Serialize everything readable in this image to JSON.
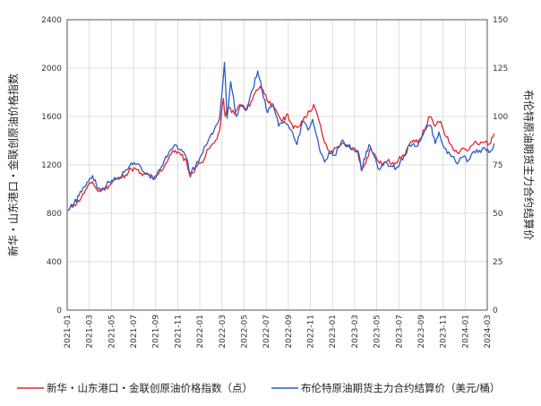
{
  "chart_data": {
    "type": "line",
    "x_labels": [
      "2021-01",
      "2021-03",
      "2021-05",
      "2021-07",
      "2021-09",
      "2021-11",
      "2022-01",
      "2022-03",
      "2022-05",
      "2022-07",
      "2022-09",
      "2022-11",
      "2023-01",
      "2023-03",
      "2023-05",
      "2023-07",
      "2023-09",
      "2023-11",
      "2024-01",
      "2024-03"
    ],
    "x_range": [
      "2021-01",
      "2024-03"
    ],
    "ylabel_left": "新华・山东港口・金联创原油价格指数",
    "ylabel_right": "布伦特原油期货主力合约结算价",
    "ylim_left": [
      0,
      2400
    ],
    "ylim_right": [
      0,
      150
    ],
    "yticks_left": [
      0,
      400,
      800,
      1200,
      1600,
      2000,
      2400
    ],
    "yticks_right": [
      0,
      25,
      50,
      75,
      100,
      125,
      150
    ],
    "grid": true,
    "legend_position": "bottom",
    "series": [
      {
        "name": "新华・山东港口・金联创原油价格指数（点）",
        "axis": "left",
        "color": "#e8262b",
        "points": [
          [
            "2021-01-04",
            820
          ],
          [
            "2021-01-20",
            870
          ],
          [
            "2021-02-10",
            930
          ],
          [
            "2021-02-25",
            1010
          ],
          [
            "2021-03-10",
            1060
          ],
          [
            "2021-03-25",
            980
          ],
          [
            "2021-04-10",
            1000
          ],
          [
            "2021-04-25",
            1030
          ],
          [
            "2021-05-10",
            1080
          ],
          [
            "2021-05-25",
            1090
          ],
          [
            "2021-06-10",
            1120
          ],
          [
            "2021-06-25",
            1170
          ],
          [
            "2021-07-10",
            1160
          ],
          [
            "2021-07-25",
            1110
          ],
          [
            "2021-08-10",
            1130
          ],
          [
            "2021-08-25",
            1080
          ],
          [
            "2021-09-10",
            1130
          ],
          [
            "2021-09-25",
            1190
          ],
          [
            "2021-10-10",
            1280
          ],
          [
            "2021-10-25",
            1320
          ],
          [
            "2021-11-10",
            1280
          ],
          [
            "2021-11-25",
            1230
          ],
          [
            "2021-12-05",
            1100
          ],
          [
            "2021-12-20",
            1180
          ],
          [
            "2022-01-05",
            1220
          ],
          [
            "2022-01-25",
            1330
          ],
          [
            "2022-02-10",
            1380
          ],
          [
            "2022-02-25",
            1480
          ],
          [
            "2022-03-05",
            1750
          ],
          [
            "2022-03-10",
            1600
          ],
          [
            "2022-03-20",
            1680
          ],
          [
            "2022-04-05",
            1620
          ],
          [
            "2022-04-20",
            1700
          ],
          [
            "2022-05-05",
            1650
          ],
          [
            "2022-05-20",
            1720
          ],
          [
            "2022-06-05",
            1820
          ],
          [
            "2022-06-15",
            1850
          ],
          [
            "2022-06-30",
            1780
          ],
          [
            "2022-07-15",
            1680
          ],
          [
            "2022-07-30",
            1640
          ],
          [
            "2022-08-15",
            1560
          ],
          [
            "2022-08-30",
            1620
          ],
          [
            "2022-09-15",
            1500
          ],
          [
            "2022-09-30",
            1520
          ],
          [
            "2022-10-15",
            1600
          ],
          [
            "2022-10-30",
            1640
          ],
          [
            "2022-11-10",
            1700
          ],
          [
            "2022-11-25",
            1560
          ],
          [
            "2022-12-10",
            1380
          ],
          [
            "2022-12-25",
            1290
          ],
          [
            "2023-01-10",
            1340
          ],
          [
            "2023-01-25",
            1370
          ],
          [
            "2023-02-10",
            1350
          ],
          [
            "2023-02-25",
            1340
          ],
          [
            "2023-03-10",
            1310
          ],
          [
            "2023-03-20",
            1150
          ],
          [
            "2023-04-05",
            1260
          ],
          [
            "2023-04-15",
            1340
          ],
          [
            "2023-05-01",
            1250
          ],
          [
            "2023-05-15",
            1200
          ],
          [
            "2023-05-30",
            1230
          ],
          [
            "2023-06-15",
            1220
          ],
          [
            "2023-06-30",
            1240
          ],
          [
            "2023-07-15",
            1280
          ],
          [
            "2023-07-30",
            1370
          ],
          [
            "2023-08-15",
            1390
          ],
          [
            "2023-08-30",
            1420
          ],
          [
            "2023-09-15",
            1520
          ],
          [
            "2023-09-25",
            1600
          ],
          [
            "2023-10-10",
            1520
          ],
          [
            "2023-10-25",
            1560
          ],
          [
            "2023-11-10",
            1430
          ],
          [
            "2023-11-25",
            1360
          ],
          [
            "2023-12-10",
            1300
          ],
          [
            "2023-12-25",
            1340
          ],
          [
            "2024-01-10",
            1320
          ],
          [
            "2024-01-25",
            1380
          ],
          [
            "2024-02-10",
            1370
          ],
          [
            "2024-02-25",
            1390
          ],
          [
            "2024-03-10",
            1380
          ],
          [
            "2024-03-20",
            1460
          ]
        ]
      },
      {
        "name": "布伦特原油期货主力合约结算价（美元/桶）",
        "axis": "right",
        "color": "#2a5dc2",
        "points": [
          [
            "2021-01-04",
            51.5
          ],
          [
            "2021-01-20",
            55.0
          ],
          [
            "2021-02-10",
            61.0
          ],
          [
            "2021-02-25",
            66.0
          ],
          [
            "2021-03-10",
            69.5
          ],
          [
            "2021-03-25",
            62.5
          ],
          [
            "2021-04-10",
            63.0
          ],
          [
            "2021-04-25",
            66.0
          ],
          [
            "2021-05-10",
            68.5
          ],
          [
            "2021-05-25",
            68.5
          ],
          [
            "2021-06-10",
            72.5
          ],
          [
            "2021-06-25",
            76.0
          ],
          [
            "2021-07-10",
            75.5
          ],
          [
            "2021-07-25",
            72.0
          ],
          [
            "2021-08-10",
            70.5
          ],
          [
            "2021-08-25",
            67.5
          ],
          [
            "2021-09-10",
            72.5
          ],
          [
            "2021-09-25",
            77.5
          ],
          [
            "2021-10-10",
            82.5
          ],
          [
            "2021-10-25",
            85.5
          ],
          [
            "2021-11-10",
            83.0
          ],
          [
            "2021-11-25",
            78.5
          ],
          [
            "2021-12-05",
            70.5
          ],
          [
            "2021-12-20",
            74.5
          ],
          [
            "2022-01-05",
            80.0
          ],
          [
            "2022-01-25",
            88.0
          ],
          [
            "2022-02-10",
            93.0
          ],
          [
            "2022-02-25",
            99.0
          ],
          [
            "2022-03-08",
            128.0
          ],
          [
            "2022-03-15",
            99.0
          ],
          [
            "2022-03-25",
            118.0
          ],
          [
            "2022-04-10",
            100.0
          ],
          [
            "2022-04-25",
            106.0
          ],
          [
            "2022-05-10",
            104.0
          ],
          [
            "2022-05-25",
            114.0
          ],
          [
            "2022-06-08",
            123.5
          ],
          [
            "2022-06-20",
            114.0
          ],
          [
            "2022-07-05",
            102.0
          ],
          [
            "2022-07-20",
            106.5
          ],
          [
            "2022-08-05",
            95.0
          ],
          [
            "2022-08-20",
            97.5
          ],
          [
            "2022-09-05",
            93.5
          ],
          [
            "2022-09-25",
            85.5
          ],
          [
            "2022-10-10",
            97.5
          ],
          [
            "2022-10-25",
            93.0
          ],
          [
            "2022-11-07",
            98.5
          ],
          [
            "2022-11-25",
            84.0
          ],
          [
            "2022-12-10",
            76.5
          ],
          [
            "2022-12-25",
            81.5
          ],
          [
            "2023-01-10",
            80.0
          ],
          [
            "2023-01-25",
            87.0
          ],
          [
            "2023-02-10",
            85.5
          ],
          [
            "2023-02-25",
            83.0
          ],
          [
            "2023-03-10",
            82.5
          ],
          [
            "2023-03-20",
            72.5
          ],
          [
            "2023-04-10",
            85.5
          ],
          [
            "2023-04-25",
            79.0
          ],
          [
            "2023-05-05",
            73.0
          ],
          [
            "2023-05-20",
            76.0
          ],
          [
            "2023-06-10",
            74.5
          ],
          [
            "2023-06-25",
            73.5
          ],
          [
            "2023-07-15",
            79.5
          ],
          [
            "2023-07-30",
            85.5
          ],
          [
            "2023-08-15",
            84.5
          ],
          [
            "2023-08-30",
            87.5
          ],
          [
            "2023-09-15",
            93.5
          ],
          [
            "2023-09-27",
            95.5
          ],
          [
            "2023-10-10",
            86.0
          ],
          [
            "2023-10-20",
            92.0
          ],
          [
            "2023-11-05",
            83.5
          ],
          [
            "2023-11-20",
            80.5
          ],
          [
            "2023-12-10",
            75.5
          ],
          [
            "2023-12-25",
            79.0
          ],
          [
            "2024-01-10",
            77.5
          ],
          [
            "2024-01-25",
            82.0
          ],
          [
            "2024-02-10",
            82.5
          ],
          [
            "2024-02-25",
            83.5
          ],
          [
            "2024-03-10",
            82.0
          ],
          [
            "2024-03-20",
            86.0
          ]
        ]
      }
    ]
  },
  "legend": {
    "series1": "新华・山东港口・金联创原油价格指数（点）",
    "series2": "布伦特原油期货主力合约结算价（美元/桶）"
  }
}
